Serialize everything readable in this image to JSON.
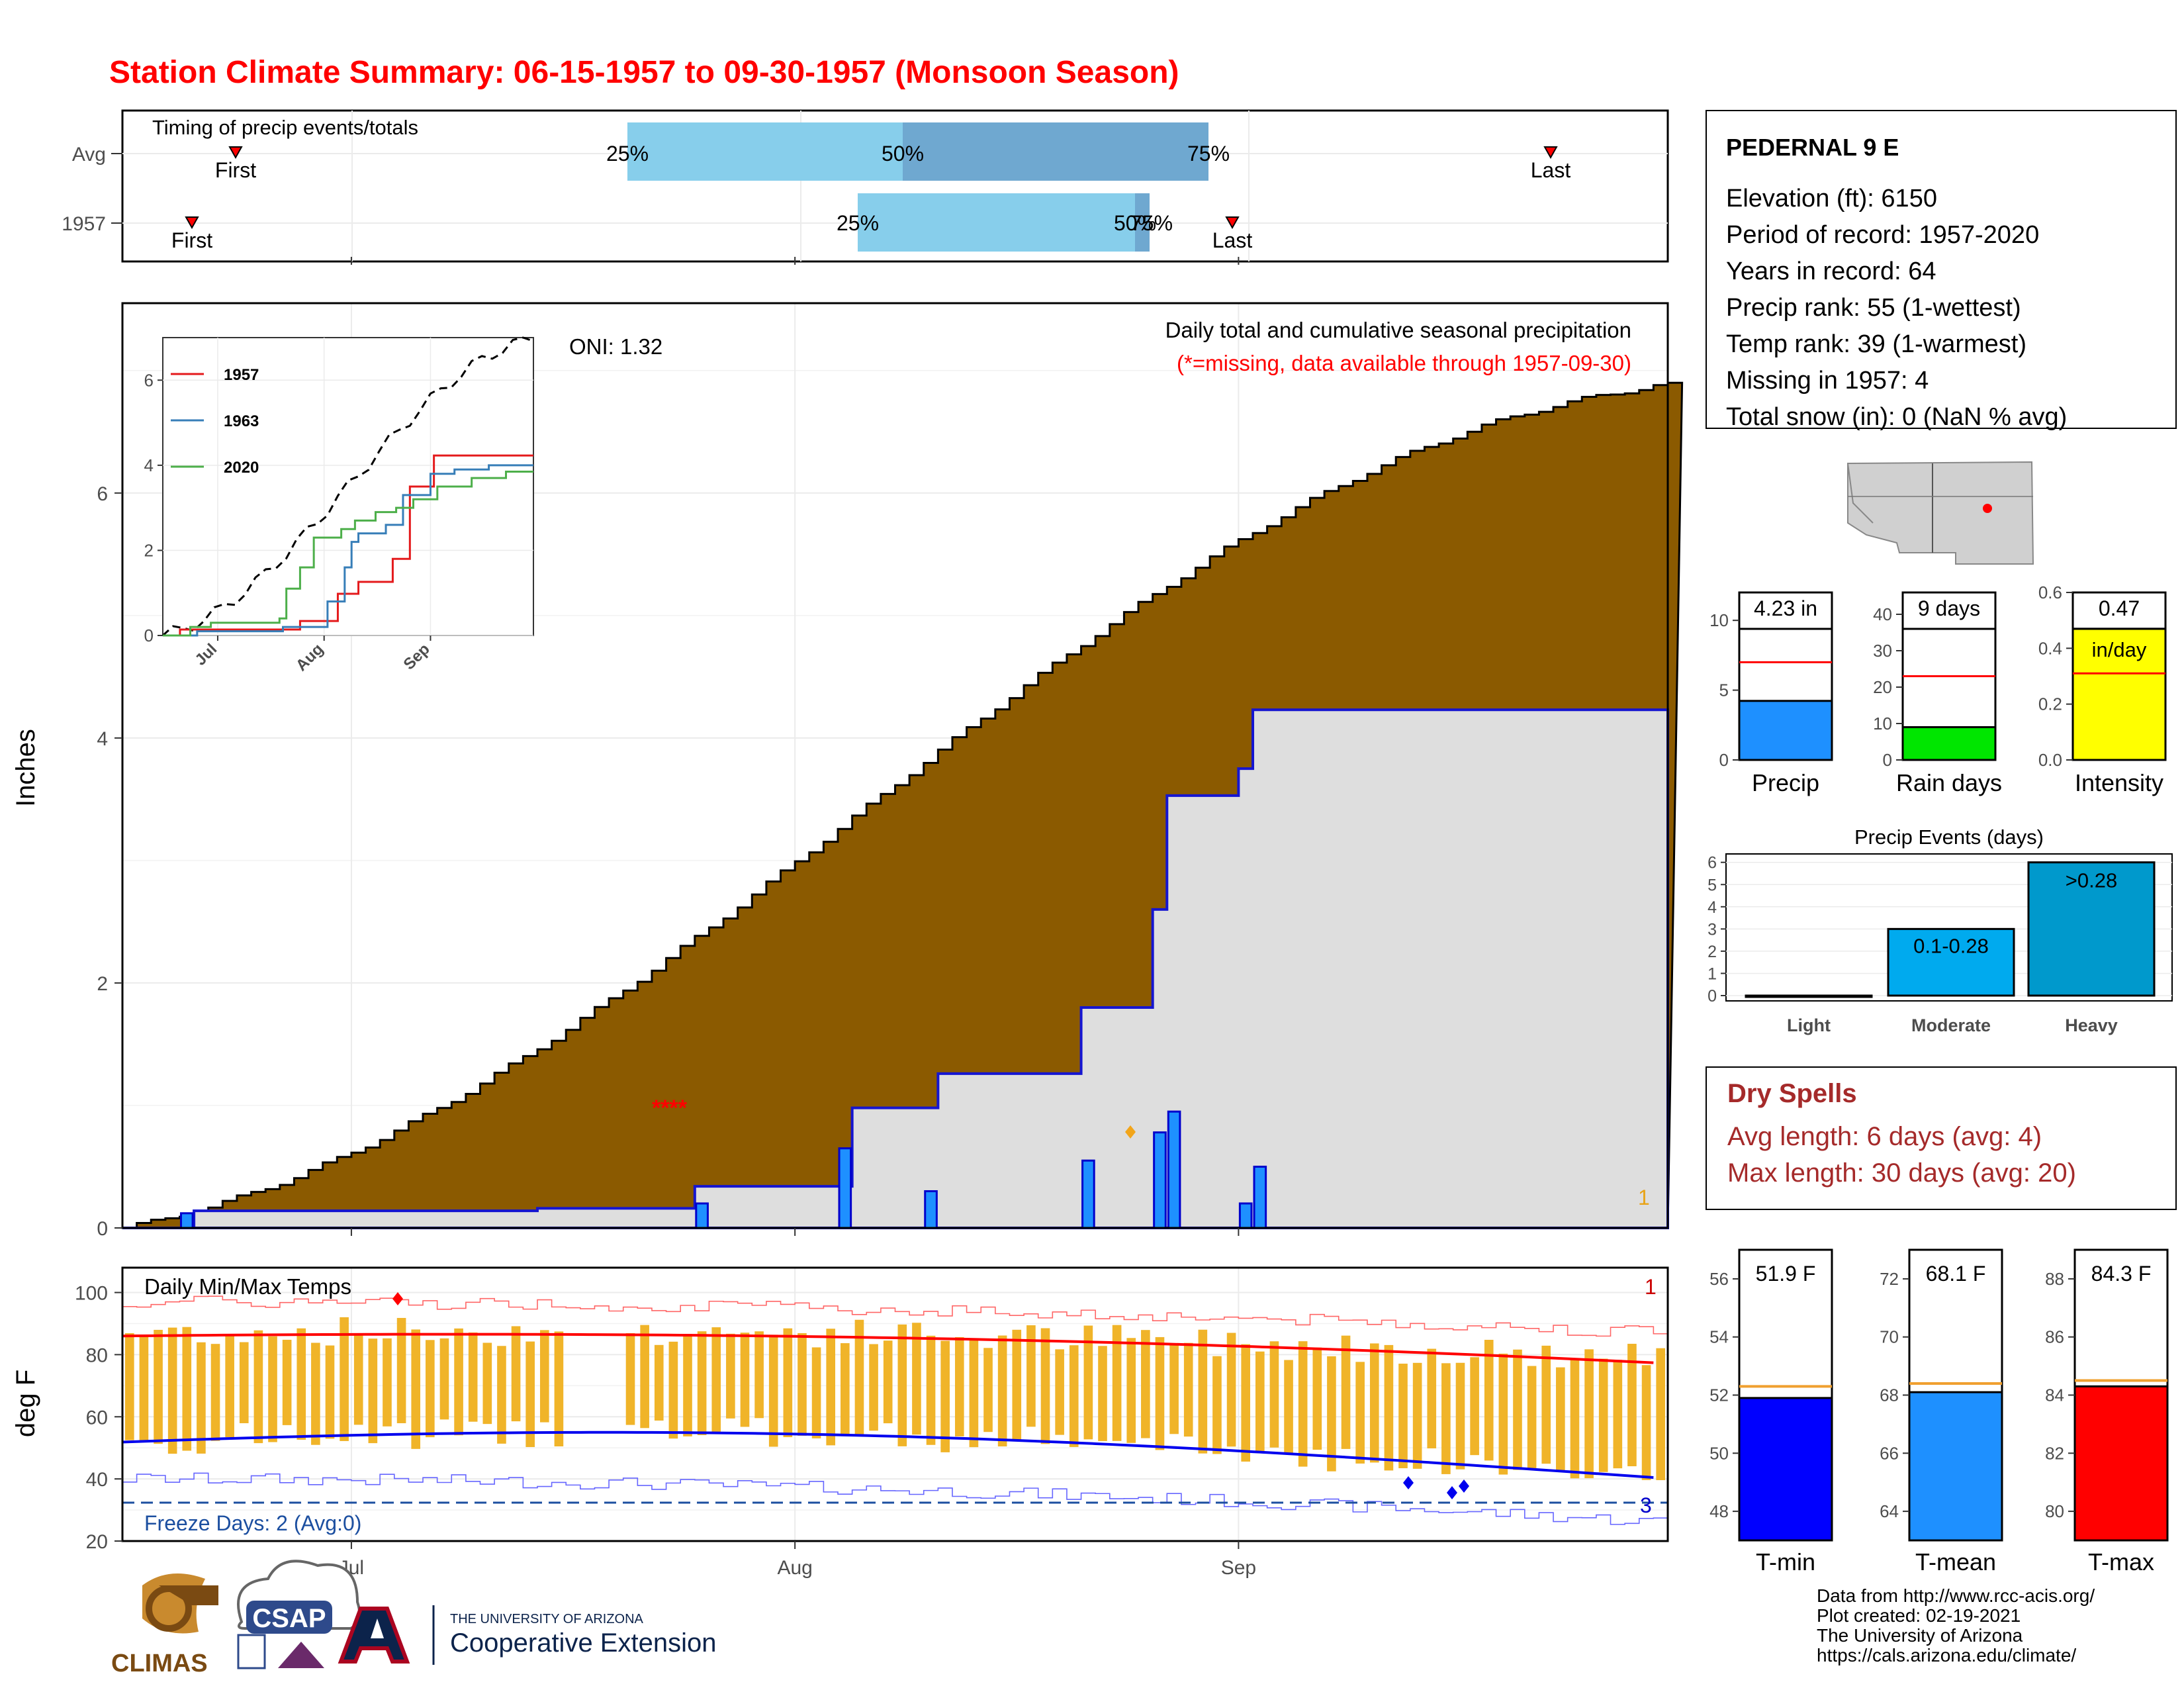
{
  "title": "Station Climate Summary: 06-15-1957 to 09-30-1957 (Monsoon Season)",
  "colors": {
    "brown": "#8b5a00",
    "blue_bar": "#1e90ff",
    "light_blue": "#87ceeb",
    "mid_blue": "#6fa8d0",
    "red": "#ff0000",
    "green": "#00e600",
    "yellow": "#ffff00",
    "orange": "#e8a317"
  },
  "timing": {
    "label": "Timing of precip events/totals",
    "rows": [
      {
        "name": "Avg",
        "first_label": "First",
        "last_label": "Last",
        "p25": "25%",
        "p50": "50%",
        "p75": "75%"
      },
      {
        "name": "1957",
        "first_label": "First",
        "last_label": "Last",
        "p25": "25%",
        "p50": "50%",
        "p75": "75%"
      }
    ]
  },
  "main_plot": {
    "ylabel": "Inches",
    "header": "Daily total and cumulative seasonal precipitation",
    "missing_note": "(*=missing, data available through 1957-09-30)",
    "oni": "ONI: 1.32",
    "missing_marks": "****",
    "corner_count": "1",
    "yticks": [
      "0",
      "2",
      "4",
      "6"
    ],
    "xticks": [
      "Jul",
      "Aug",
      "Sep"
    ]
  },
  "inset": {
    "legend": [
      {
        "name": "1957",
        "color": "#e41a1c"
      },
      {
        "name": "1963",
        "color": "#377eb8"
      },
      {
        "name": "2020",
        "color": "#4daf4a"
      }
    ],
    "yticks": [
      "0",
      "2",
      "4",
      "6"
    ],
    "xticks": [
      "Jul",
      "Aug",
      "Sep"
    ]
  },
  "temp_plot": {
    "ylabel": "deg F",
    "label": "Daily Min/Max Temps",
    "freeze_label": "Freeze Days: 2 (Avg:0)",
    "count_top": "1",
    "count_bottom": "3",
    "yticks": [
      "20",
      "40",
      "60",
      "80",
      "100"
    ],
    "xticks": [
      "Jul",
      "Aug",
      "Sep"
    ]
  },
  "station": {
    "name": "PEDERNAL 9 E",
    "lines": [
      "Elevation (ft): 6150",
      "Period of record: 1957-2020",
      "Years in record: 64",
      "Precip rank: 55 (1-wettest)",
      "Temp rank: 39 (1-warmest)",
      "Missing in 1957: 4",
      "Total snow (in): 0 (NaN % avg)"
    ]
  },
  "summary_bars": [
    {
      "label": "Precip",
      "value_label": "4.23 in",
      "value": 4.23,
      "avg": 7.0,
      "max": 12,
      "yticks": [
        "0",
        "5",
        "10"
      ],
      "color": "#1e90ff"
    },
    {
      "label": "Rain days",
      "value_label": "9 days",
      "value": 9,
      "avg": 23,
      "max": 46,
      "yticks": [
        "0",
        "10",
        "20",
        "30",
        "40"
      ],
      "color": "#00e600"
    },
    {
      "label": "Intensity",
      "value_label": "0.47",
      "unit": "in/day",
      "value": 0.47,
      "avg": 0.31,
      "max": 0.6,
      "yticks": [
        "0.0",
        "0.2",
        "0.4",
        "0.6"
      ],
      "color": "#ffff00"
    }
  ],
  "events": {
    "title": "Precip Events (days)",
    "categories": [
      "Light",
      "Moderate",
      "Heavy"
    ],
    "values": [
      0,
      3,
      6
    ],
    "labels": [
      "",
      "0.1-0.28",
      ">0.28"
    ],
    "yticks": [
      "0",
      "1",
      "2",
      "3",
      "4",
      "5",
      "6"
    ]
  },
  "dry_spells": {
    "title": "Dry Spells",
    "avg": "Avg length: 6 days (avg: 4)",
    "max": "Max length: 30 days (avg: 20)"
  },
  "temp_bars": [
    {
      "label": "T-min",
      "value_label": "51.9 F",
      "value": 51.9,
      "avg": 52.3,
      "range": [
        47,
        57
      ],
      "yticks": [
        "48",
        "50",
        "52",
        "54",
        "56"
      ],
      "color": "#0000ff"
    },
    {
      "label": "T-mean",
      "value_label": "68.1 F",
      "value": 68.1,
      "avg": 68.4,
      "range": [
        63,
        73
      ],
      "yticks": [
        "64",
        "66",
        "68",
        "70",
        "72"
      ],
      "color": "#1e90ff"
    },
    {
      "label": "T-max",
      "value_label": "84.3 F",
      "value": 84.3,
      "avg": 84.5,
      "range": [
        79,
        89
      ],
      "yticks": [
        "80",
        "82",
        "84",
        "86",
        "88"
      ],
      "color": "#ff0000"
    }
  ],
  "logos": {
    "climas": "CLIMAS",
    "csap": "CSAP",
    "ua_small": "THE UNIVERSITY OF ARIZONA",
    "ua_big": "Cooperative Extension"
  },
  "footer": [
    "Data from http://www.rcc-acis.org/",
    "Plot created: 02-19-2021",
    "The University of Arizona",
    "https://cals.arizona.edu/climate/"
  ],
  "chart_data": [
    {
      "type": "area",
      "title": "Daily total and cumulative seasonal precipitation",
      "ylabel": "Inches",
      "x": [
        "06-15",
        "07-01",
        "07-15",
        "08-01",
        "08-15",
        "09-01",
        "09-15",
        "09-30"
      ],
      "series": [
        {
          "name": "1957",
          "values": [
            0.0,
            0.15,
            0.2,
            0.97,
            1.26,
            4.23,
            4.23,
            4.23
          ]
        }
      ],
      "ylim": [
        0,
        7.5
      ]
    },
    {
      "type": "bar",
      "title": "Precip Events (days)",
      "categories": [
        "Light",
        "Moderate",
        "Heavy"
      ],
      "values": [
        0,
        3,
        6
      ]
    },
    {
      "type": "bar",
      "categories": [
        "T-min",
        "T-mean",
        "T-max"
      ],
      "values": [
        51.9,
        68.1,
        84.3
      ]
    }
  ]
}
